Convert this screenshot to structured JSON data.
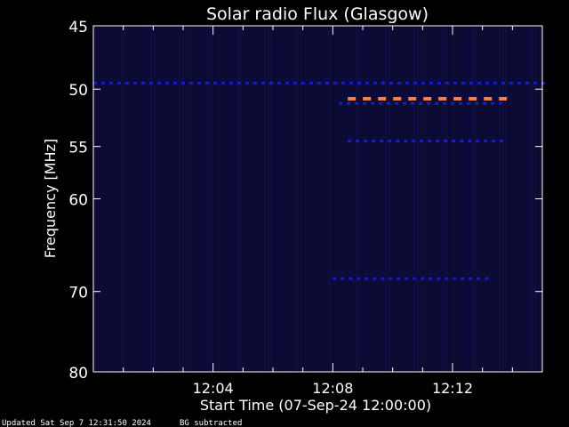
{
  "chart_data": {
    "type": "heatmap",
    "title": "Solar radio Flux (Glasgow)",
    "xlabel": "Start Time (07-Sep-24 12:00:00)",
    "ylabel": "Frequency [MHz]",
    "x_unit": "minutes after 12:00:00",
    "xlim": [
      0,
      15
    ],
    "ylim": [
      45,
      80
    ],
    "y_scale": "log",
    "x_ticks": [
      {
        "value": 4,
        "label": "12:04"
      },
      {
        "value": 8,
        "label": "12:08"
      },
      {
        "value": 12,
        "label": "12:12"
      }
    ],
    "y_ticks": [
      {
        "value": 45,
        "label": "45"
      },
      {
        "value": 50,
        "label": "50"
      },
      {
        "value": 55,
        "label": "55"
      },
      {
        "value": 60,
        "label": "60"
      },
      {
        "value": 70,
        "label": "70"
      },
      {
        "value": 80,
        "label": "80"
      }
    ],
    "colors": {
      "background": "#000000",
      "frame": "#ffffff",
      "low": "#0a0a30",
      "medium": "#1a1ad0",
      "high": "#ff7f3f"
    },
    "emission_bands": [
      {
        "freq_mhz": 49.5,
        "t_start": 0,
        "t_end": 15,
        "intensity": "medium"
      },
      {
        "freq_mhz": 50.8,
        "t_start": 8.5,
        "t_end": 13.8,
        "intensity": "high"
      },
      {
        "freq_mhz": 51.2,
        "t_start": 8.2,
        "t_end": 13.8,
        "intensity": "medium"
      },
      {
        "freq_mhz": 54.5,
        "t_start": 8.5,
        "t_end": 13.8,
        "intensity": "medium"
      },
      {
        "freq_mhz": 68.5,
        "t_start": 8.0,
        "t_end": 13.2,
        "intensity": "medium"
      }
    ]
  },
  "footer": {
    "updated": "Updated Sat Sep  7 12:31:50 2024",
    "note": "BG subtracted"
  }
}
